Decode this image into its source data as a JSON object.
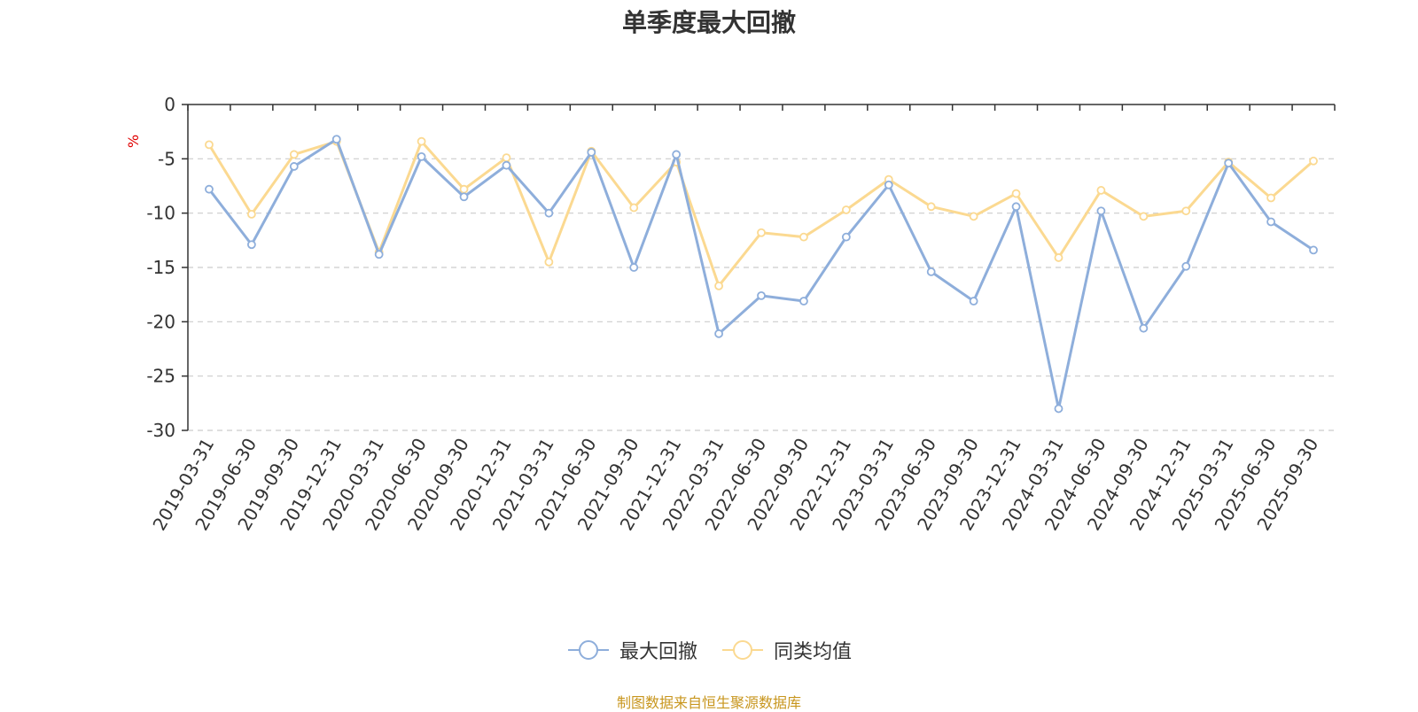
{
  "chart_data": {
    "type": "line",
    "title": "单季度最大回撤",
    "ylabel": "%",
    "ylim": [
      -30,
      0
    ],
    "yticks": [
      0,
      -5,
      -10,
      -15,
      -20,
      -25,
      -30
    ],
    "grid": true,
    "legend_position": "bottom",
    "categories": [
      "2019-03-31",
      "2019-06-30",
      "2019-09-30",
      "2019-12-31",
      "2020-03-31",
      "2020-06-30",
      "2020-09-30",
      "2020-12-31",
      "2021-03-31",
      "2021-06-30",
      "2021-09-30",
      "2021-12-31",
      "2022-03-31",
      "2022-06-30",
      "2022-09-30",
      "2022-12-31",
      "2023-03-31",
      "2023-06-30",
      "2023-09-30",
      "2023-12-31",
      "2024-03-31",
      "2024-06-30",
      "2024-09-30",
      "2024-12-31",
      "2025-03-31",
      "2025-06-30",
      "2025-09-30"
    ],
    "series": [
      {
        "name": "最大回撤",
        "color": "#8eaedb",
        "values": [
          -7.8,
          -12.9,
          -5.7,
          -3.2,
          -13.8,
          -4.8,
          -8.5,
          -5.6,
          -10.0,
          -4.4,
          -15.0,
          -4.6,
          -21.1,
          -17.6,
          -18.1,
          -12.2,
          -7.4,
          -15.4,
          -18.1,
          -9.4,
          -28.0,
          -9.8,
          -20.6,
          -14.9,
          -5.4,
          -10.8,
          -13.4
        ]
      },
      {
        "name": "同类均值",
        "color": "#fbd991",
        "values": [
          -3.7,
          -10.1,
          -4.6,
          -3.4,
          -13.6,
          -3.4,
          -7.8,
          -4.9,
          -14.5,
          -4.3,
          -9.5,
          -5.3,
          -16.7,
          -11.8,
          -12.2,
          -9.7,
          -6.9,
          -9.4,
          -10.3,
          -8.2,
          -14.1,
          -7.9,
          -10.3,
          -9.8,
          -5.3,
          -8.6,
          -5.2
        ]
      }
    ]
  },
  "footer": {
    "source": "制图数据来自恒生聚源数据库"
  }
}
